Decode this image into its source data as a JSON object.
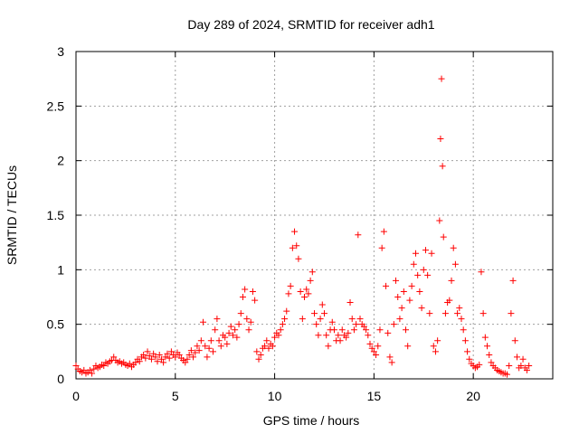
{
  "chart_data": {
    "type": "scatter",
    "title": "Day 289 of 2024, SRMTID for receiver adh1",
    "xlabel": "GPS time / hours",
    "ylabel": "SRMTID / TECUs",
    "xlim": [
      0,
      24
    ],
    "ylim": [
      0,
      3
    ],
    "xticks": [
      "0",
      "5",
      "10",
      "15",
      "20"
    ],
    "yticks": [
      "0",
      "0.5",
      "1",
      "1.5",
      "2",
      "2.5",
      "3"
    ],
    "grid": true,
    "marker": "plus",
    "color": "#ff0000",
    "series": [
      {
        "name": "adh1",
        "points": [
          [
            0.0,
            0.12
          ],
          [
            0.1,
            0.09
          ],
          [
            0.2,
            0.07
          ],
          [
            0.3,
            0.06
          ],
          [
            0.4,
            0.08
          ],
          [
            0.5,
            0.05
          ],
          [
            0.6,
            0.06
          ],
          [
            0.7,
            0.08
          ],
          [
            0.8,
            0.05
          ],
          [
            0.9,
            0.09
          ],
          [
            1.0,
            0.12
          ],
          [
            1.1,
            0.1
          ],
          [
            1.2,
            0.11
          ],
          [
            1.3,
            0.13
          ],
          [
            1.4,
            0.12
          ],
          [
            1.5,
            0.15
          ],
          [
            1.6,
            0.14
          ],
          [
            1.7,
            0.16
          ],
          [
            1.8,
            0.17
          ],
          [
            1.9,
            0.2
          ],
          [
            2.0,
            0.17
          ],
          [
            2.1,
            0.15
          ],
          [
            2.2,
            0.16
          ],
          [
            2.3,
            0.14
          ],
          [
            2.4,
            0.15
          ],
          [
            2.5,
            0.13
          ],
          [
            2.6,
            0.12
          ],
          [
            2.7,
            0.14
          ],
          [
            2.8,
            0.11
          ],
          [
            2.9,
            0.13
          ],
          [
            3.0,
            0.15
          ],
          [
            3.1,
            0.18
          ],
          [
            3.2,
            0.16
          ],
          [
            3.3,
            0.2
          ],
          [
            3.4,
            0.22
          ],
          [
            3.5,
            0.19
          ],
          [
            3.6,
            0.25
          ],
          [
            3.7,
            0.21
          ],
          [
            3.8,
            0.18
          ],
          [
            3.9,
            0.23
          ],
          [
            4.0,
            0.2
          ],
          [
            4.1,
            0.16
          ],
          [
            4.2,
            0.22
          ],
          [
            4.3,
            0.18
          ],
          [
            4.4,
            0.15
          ],
          [
            4.5,
            0.2
          ],
          [
            4.6,
            0.23
          ],
          [
            4.7,
            0.19
          ],
          [
            4.8,
            0.25
          ],
          [
            4.9,
            0.22
          ],
          [
            5.0,
            0.2
          ],
          [
            5.1,
            0.24
          ],
          [
            5.2,
            0.22
          ],
          [
            5.3,
            0.19
          ],
          [
            5.4,
            0.17
          ],
          [
            5.5,
            0.15
          ],
          [
            5.6,
            0.18
          ],
          [
            5.7,
            0.22
          ],
          [
            5.8,
            0.26
          ],
          [
            5.9,
            0.2
          ],
          [
            6.0,
            0.24
          ],
          [
            6.1,
            0.3
          ],
          [
            6.2,
            0.26
          ],
          [
            6.3,
            0.35
          ],
          [
            6.4,
            0.52
          ],
          [
            6.5,
            0.3
          ],
          [
            6.6,
            0.2
          ],
          [
            6.7,
            0.28
          ],
          [
            6.8,
            0.35
          ],
          [
            6.9,
            0.25
          ],
          [
            7.0,
            0.45
          ],
          [
            7.1,
            0.55
          ],
          [
            7.2,
            0.35
          ],
          [
            7.3,
            0.3
          ],
          [
            7.4,
            0.4
          ],
          [
            7.5,
            0.38
          ],
          [
            7.6,
            0.32
          ],
          [
            7.7,
            0.42
          ],
          [
            7.8,
            0.48
          ],
          [
            7.9,
            0.4
          ],
          [
            8.0,
            0.45
          ],
          [
            8.1,
            0.38
          ],
          [
            8.2,
            0.5
          ],
          [
            8.3,
            0.6
          ],
          [
            8.4,
            0.75
          ],
          [
            8.5,
            0.82
          ],
          [
            8.6,
            0.55
          ],
          [
            8.7,
            0.45
          ],
          [
            8.8,
            0.52
          ],
          [
            8.9,
            0.8
          ],
          [
            9.0,
            0.72
          ],
          [
            9.1,
            0.25
          ],
          [
            9.2,
            0.18
          ],
          [
            9.3,
            0.22
          ],
          [
            9.4,
            0.28
          ],
          [
            9.5,
            0.3
          ],
          [
            9.6,
            0.35
          ],
          [
            9.7,
            0.28
          ],
          [
            9.8,
            0.32
          ],
          [
            9.9,
            0.3
          ],
          [
            10.0,
            0.38
          ],
          [
            10.1,
            0.42
          ],
          [
            10.2,
            0.4
          ],
          [
            10.3,
            0.45
          ],
          [
            10.4,
            0.5
          ],
          [
            10.5,
            0.55
          ],
          [
            10.6,
            0.62
          ],
          [
            10.7,
            0.78
          ],
          [
            10.8,
            0.85
          ],
          [
            10.9,
            1.2
          ],
          [
            11.0,
            1.35
          ],
          [
            11.1,
            1.22
          ],
          [
            11.2,
            1.1
          ],
          [
            11.3,
            0.8
          ],
          [
            11.4,
            0.55
          ],
          [
            11.5,
            0.75
          ],
          [
            11.6,
            0.82
          ],
          [
            11.7,
            0.78
          ],
          [
            11.8,
            0.9
          ],
          [
            11.9,
            0.98
          ],
          [
            12.0,
            0.6
          ],
          [
            12.1,
            0.5
          ],
          [
            12.2,
            0.4
          ],
          [
            12.3,
            0.55
          ],
          [
            12.4,
            0.68
          ],
          [
            12.5,
            0.6
          ],
          [
            12.6,
            0.4
          ],
          [
            12.7,
            0.3
          ],
          [
            12.8,
            0.45
          ],
          [
            12.9,
            0.52
          ],
          [
            13.0,
            0.45
          ],
          [
            13.1,
            0.35
          ],
          [
            13.2,
            0.4
          ],
          [
            13.3,
            0.35
          ],
          [
            13.4,
            0.45
          ],
          [
            13.5,
            0.4
          ],
          [
            13.6,
            0.38
          ],
          [
            13.7,
            0.42
          ],
          [
            13.8,
            0.7
          ],
          [
            13.9,
            0.55
          ],
          [
            14.0,
            0.45
          ],
          [
            14.1,
            0.5
          ],
          [
            14.2,
            1.32
          ],
          [
            14.3,
            0.55
          ],
          [
            14.4,
            0.5
          ],
          [
            14.5,
            0.48
          ],
          [
            14.6,
            0.45
          ],
          [
            14.7,
            0.4
          ],
          [
            14.8,
            0.32
          ],
          [
            14.9,
            0.28
          ],
          [
            15.0,
            0.25
          ],
          [
            15.1,
            0.22
          ],
          [
            15.2,
            0.3
          ],
          [
            15.3,
            0.45
          ],
          [
            15.4,
            1.2
          ],
          [
            15.5,
            1.35
          ],
          [
            15.6,
            0.85
          ],
          [
            15.7,
            0.42
          ],
          [
            15.8,
            0.2
          ],
          [
            15.9,
            0.15
          ],
          [
            16.0,
            0.5
          ],
          [
            16.1,
            0.9
          ],
          [
            16.2,
            0.75
          ],
          [
            16.3,
            0.55
          ],
          [
            16.4,
            0.65
          ],
          [
            16.5,
            0.8
          ],
          [
            16.6,
            0.45
          ],
          [
            16.7,
            0.3
          ],
          [
            16.8,
            0.72
          ],
          [
            16.9,
            0.85
          ],
          [
            17.0,
            1.05
          ],
          [
            17.1,
            1.15
          ],
          [
            17.2,
            0.95
          ],
          [
            17.3,
            0.8
          ],
          [
            17.4,
            0.65
          ],
          [
            17.5,
            1.0
          ],
          [
            17.6,
            1.18
          ],
          [
            17.7,
            0.95
          ],
          [
            17.8,
            0.6
          ],
          [
            17.9,
            1.15
          ],
          [
            18.0,
            0.3
          ],
          [
            18.1,
            0.25
          ],
          [
            18.2,
            0.35
          ],
          [
            18.3,
            1.45
          ],
          [
            18.35,
            2.2
          ],
          [
            18.4,
            2.75
          ],
          [
            18.45,
            1.95
          ],
          [
            18.5,
            1.3
          ],
          [
            18.6,
            0.6
          ],
          [
            18.7,
            0.7
          ],
          [
            18.8,
            0.72
          ],
          [
            18.9,
            0.9
          ],
          [
            19.0,
            1.2
          ],
          [
            19.1,
            1.05
          ],
          [
            19.2,
            0.6
          ],
          [
            19.3,
            0.65
          ],
          [
            19.4,
            0.55
          ],
          [
            19.5,
            0.45
          ],
          [
            19.6,
            0.35
          ],
          [
            19.7,
            0.25
          ],
          [
            19.8,
            0.18
          ],
          [
            19.9,
            0.14
          ],
          [
            20.0,
            0.12
          ],
          [
            20.1,
            0.1
          ],
          [
            20.2,
            0.11
          ],
          [
            20.3,
            0.13
          ],
          [
            20.4,
            0.98
          ],
          [
            20.5,
            0.6
          ],
          [
            20.6,
            0.38
          ],
          [
            20.7,
            0.3
          ],
          [
            20.8,
            0.22
          ],
          [
            20.9,
            0.15
          ],
          [
            21.0,
            0.12
          ],
          [
            21.1,
            0.1
          ],
          [
            21.2,
            0.08
          ],
          [
            21.3,
            0.07
          ],
          [
            21.4,
            0.06
          ],
          [
            21.5,
            0.05
          ],
          [
            21.6,
            0.05
          ],
          [
            21.7,
            0.04
          ],
          [
            21.8,
            0.12
          ],
          [
            21.9,
            0.6
          ],
          [
            22.0,
            0.9
          ],
          [
            22.1,
            0.35
          ],
          [
            22.2,
            0.2
          ],
          [
            22.3,
            0.1
          ],
          [
            22.4,
            0.12
          ],
          [
            22.5,
            0.18
          ],
          [
            22.6,
            0.1
          ],
          [
            22.7,
            0.08
          ],
          [
            22.8,
            0.12
          ]
        ]
      }
    ]
  }
}
